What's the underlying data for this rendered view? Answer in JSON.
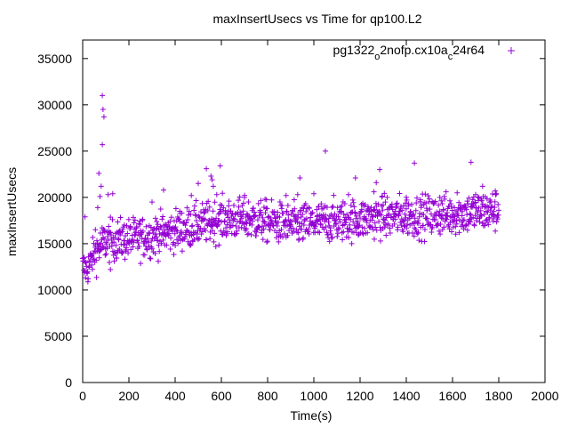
{
  "chart_data": {
    "type": "scatter",
    "title": "maxInsertUsecs vs Time for qp100.L2",
    "xlabel": "Time(s)",
    "ylabel": "maxInsertUsecs",
    "xlim": [
      0,
      2000
    ],
    "ylim": [
      0,
      37000
    ],
    "x_ticks": [
      0,
      200,
      400,
      600,
      800,
      1000,
      1200,
      1400,
      1600,
      1800,
      2000
    ],
    "y_ticks": [
      0,
      5000,
      10000,
      15000,
      20000,
      25000,
      30000,
      35000
    ],
    "grid": false,
    "legend_position": "top-right",
    "marker": "+",
    "series": [
      {
        "legend_parts": [
          "pg1322",
          "o",
          "2nofp.cx10a",
          "c",
          "24r64"
        ],
        "color": "#9400d3",
        "x_range": [
          0,
          1800
        ],
        "trend": [
          [
            0,
            12500
          ],
          [
            20,
            12200
          ],
          [
            50,
            14000
          ],
          [
            100,
            15300
          ],
          [
            200,
            15500
          ],
          [
            300,
            15800
          ],
          [
            400,
            16400
          ],
          [
            500,
            17000
          ],
          [
            600,
            17600
          ],
          [
            700,
            17700
          ],
          [
            800,
            17400
          ],
          [
            900,
            17000
          ],
          [
            1000,
            17200
          ],
          [
            1100,
            17500
          ],
          [
            1200,
            17600
          ],
          [
            1300,
            17900
          ],
          [
            1400,
            18000
          ],
          [
            1500,
            18000
          ],
          [
            1600,
            18200
          ],
          [
            1700,
            18400
          ],
          [
            1800,
            18600
          ]
        ],
        "outliers": [
          [
            10,
            17900
          ],
          [
            55,
            16500
          ],
          [
            65,
            18900
          ],
          [
            70,
            22600
          ],
          [
            75,
            20100
          ],
          [
            80,
            21200
          ],
          [
            85,
            31000
          ],
          [
            88,
            29500
          ],
          [
            92,
            28700
          ],
          [
            85,
            25700
          ],
          [
            110,
            20300
          ],
          [
            130,
            20400
          ],
          [
            120,
            12200
          ],
          [
            155,
            16200
          ],
          [
            180,
            15300
          ],
          [
            250,
            16400
          ],
          [
            300,
            19500
          ],
          [
            320,
            17400
          ],
          [
            350,
            20800
          ],
          [
            420,
            18500
          ],
          [
            470,
            20200
          ],
          [
            500,
            21500
          ],
          [
            535,
            23100
          ],
          [
            555,
            22300
          ],
          [
            560,
            21900
          ],
          [
            565,
            21200
          ],
          [
            580,
            20300
          ],
          [
            595,
            23400
          ],
          [
            700,
            20000
          ],
          [
            880,
            20200
          ],
          [
            930,
            20300
          ],
          [
            940,
            22100
          ],
          [
            1000,
            20400
          ],
          [
            1050,
            25000
          ],
          [
            1150,
            20300
          ],
          [
            1180,
            22100
          ],
          [
            1260,
            20600
          ],
          [
            1270,
            21600
          ],
          [
            1285,
            23000
          ],
          [
            1300,
            19200
          ],
          [
            1400,
            20000
          ],
          [
            1435,
            23700
          ],
          [
            1545,
            20000
          ],
          [
            1620,
            20500
          ],
          [
            1680,
            23800
          ],
          [
            1700,
            20300
          ],
          [
            1730,
            21200
          ],
          [
            1785,
            20700
          ]
        ]
      }
    ]
  }
}
